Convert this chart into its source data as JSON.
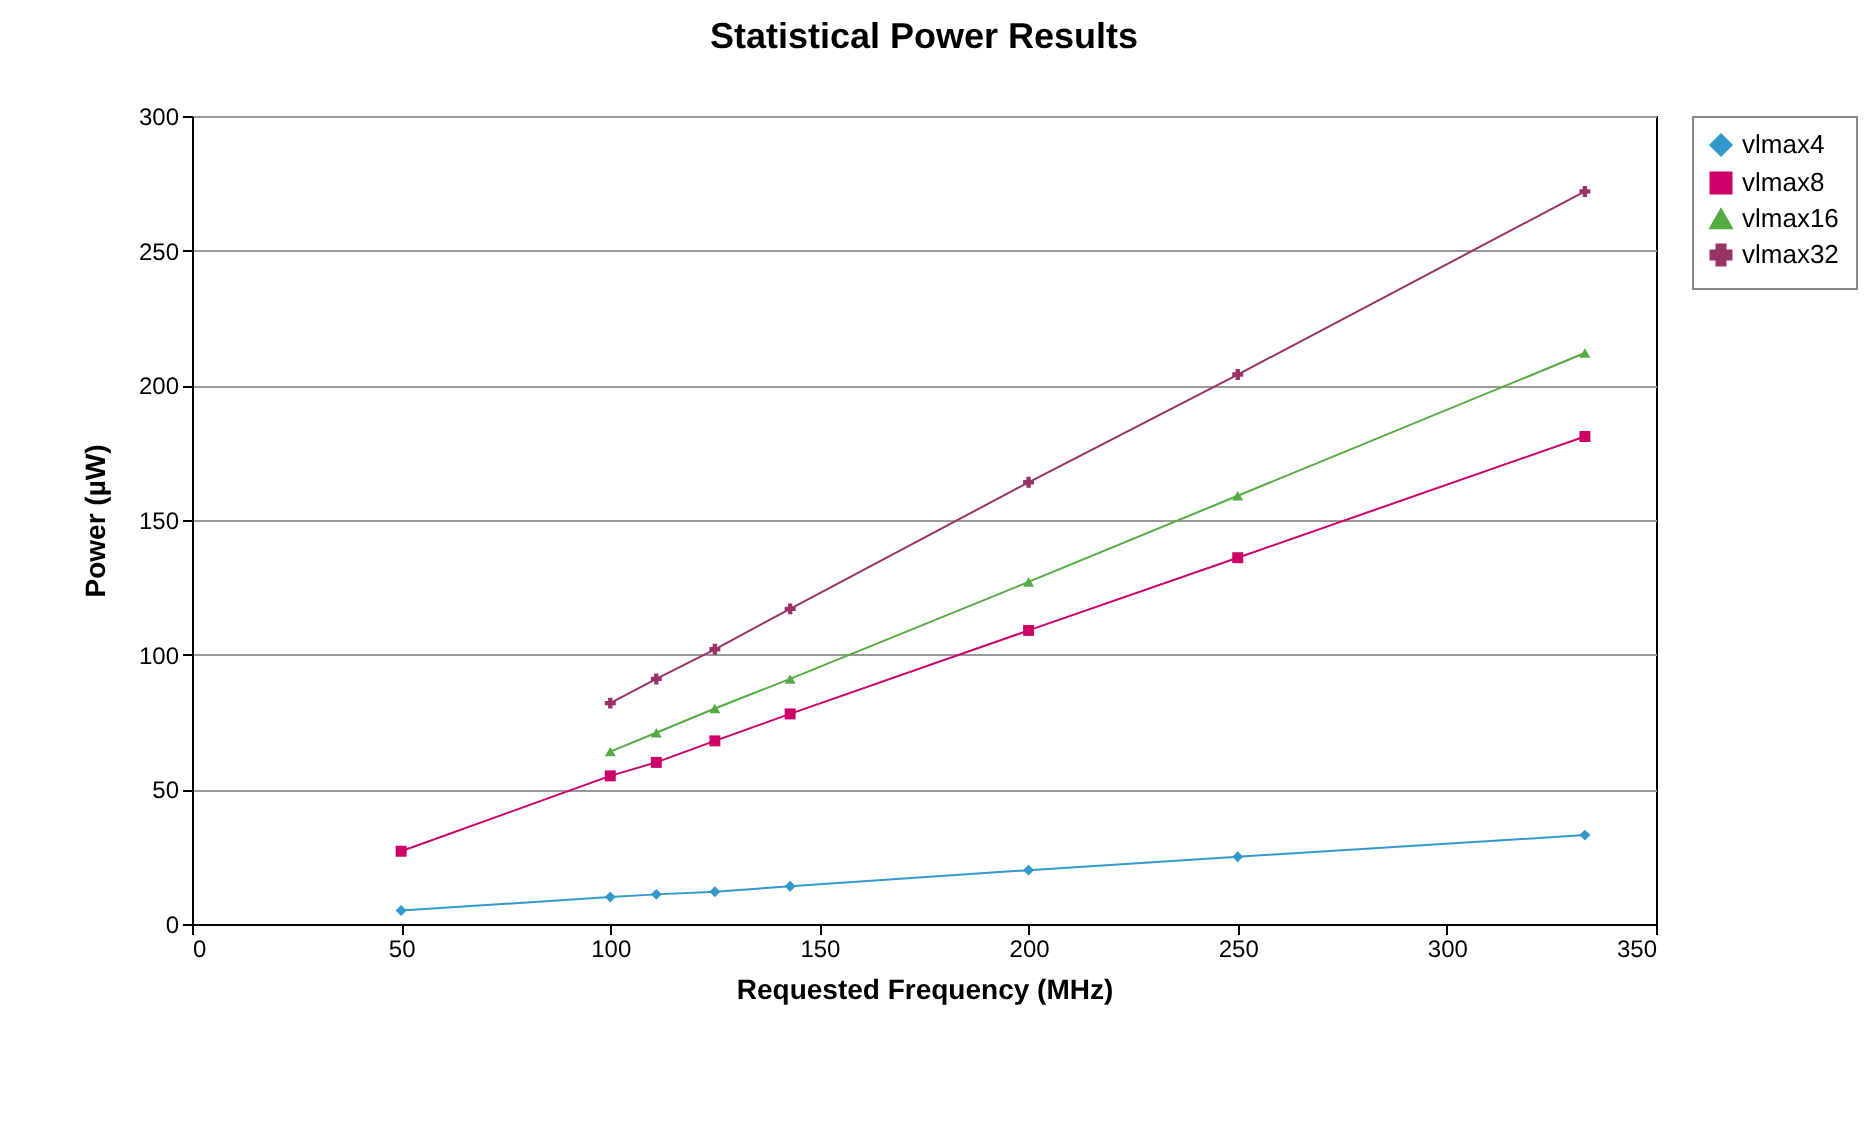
{
  "chart_data": {
    "type": "line",
    "title": "Statistical Power Results",
    "xlabel": "Requested Frequency (MHz)",
    "ylabel": "Power (µW)",
    "x": [
      50,
      100,
      111,
      125,
      143,
      200,
      250,
      333
    ],
    "series": [
      {
        "name": "vlmax4",
        "color": "#3399cc",
        "marker": "diamond",
        "values": [
          5,
          10,
          11,
          12,
          14,
          20,
          25,
          33
        ]
      },
      {
        "name": "vlmax8",
        "color": "#cc0066",
        "marker": "square",
        "values": [
          27,
          55,
          60,
          68,
          78,
          109,
          136,
          181
        ]
      },
      {
        "name": "vlmax16",
        "color": "#55aa44",
        "marker": "triangle",
        "values": [
          null,
          64,
          71,
          80,
          91,
          127,
          159,
          212
        ]
      },
      {
        "name": "vlmax32",
        "color": "#993366",
        "marker": "cross",
        "values": [
          null,
          82,
          91,
          102,
          117,
          164,
          204,
          272
        ]
      }
    ],
    "xlim": [
      0,
      350
    ],
    "xticks": [
      0,
      50,
      100,
      150,
      200,
      250,
      300,
      350
    ],
    "ylim": [
      0,
      300
    ],
    "yticks": [
      0,
      50,
      100,
      150,
      200,
      250,
      300
    ],
    "grid": "y",
    "legend": "right",
    "line_style": "solid"
  }
}
